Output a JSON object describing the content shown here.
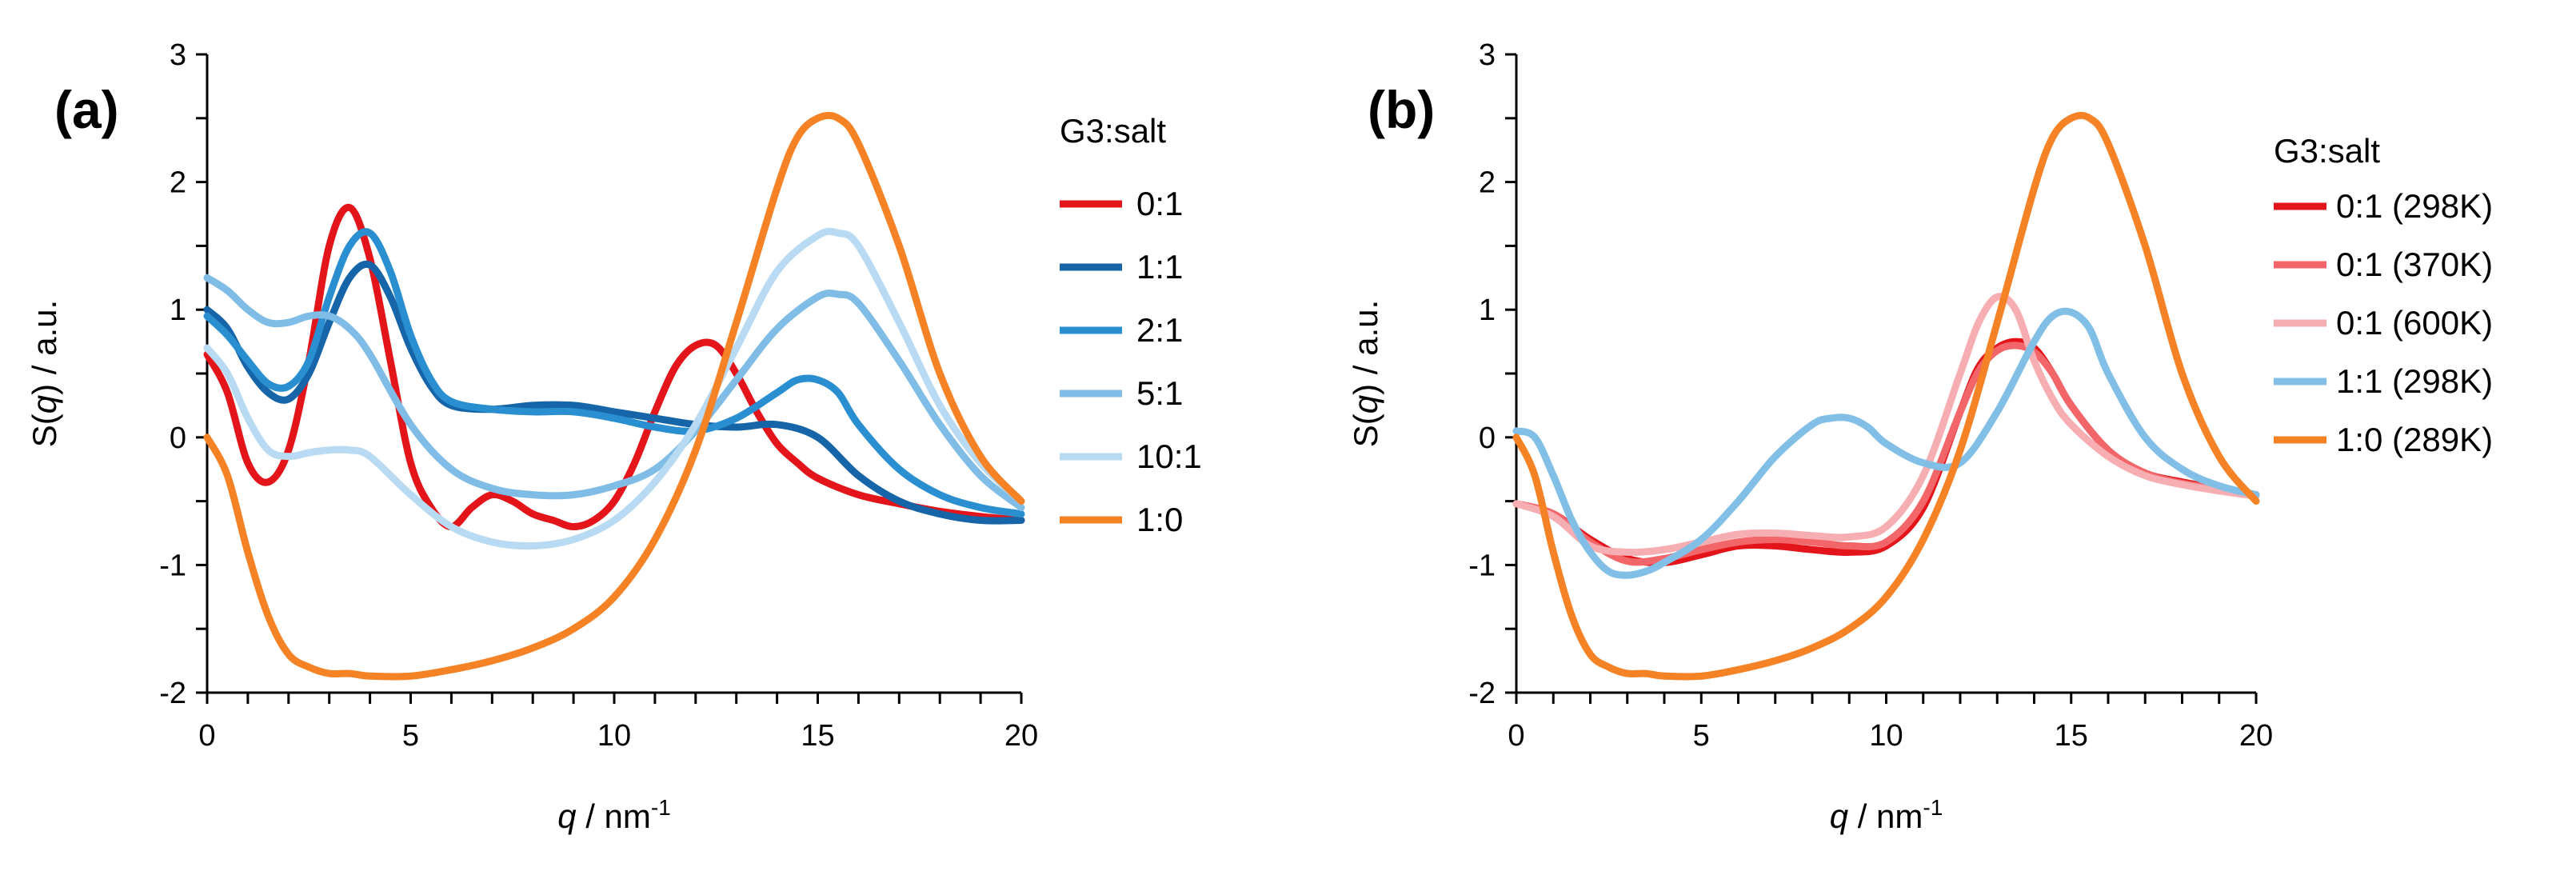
{
  "chart_data": [
    {
      "type": "line",
      "panel_label": "(a)",
      "xlabel_var": "q",
      "xlabel_rest": " / nm",
      "xlabel_sup": "-1",
      "ylabel_pre": "S(",
      "ylabel_var": "q",
      "ylabel_post": ") / a.u.",
      "xlim": [
        0,
        20
      ],
      "ylim": [
        -2,
        3
      ],
      "xticks": [
        0,
        5,
        10,
        15,
        20
      ],
      "yticks": [
        -2,
        -1,
        0,
        1,
        2,
        3
      ],
      "legend_title": "G3:salt",
      "series": [
        {
          "name": "0:1",
          "color": "#e3151a",
          "x": [
            0,
            0.5,
            1,
            1.5,
            2,
            2.5,
            3,
            3.5,
            4,
            4.5,
            5,
            5.5,
            6,
            6.5,
            7,
            7.5,
            8,
            8.5,
            9,
            9.5,
            10,
            10.5,
            11,
            11.5,
            12,
            12.5,
            13,
            13.5,
            14,
            14.5,
            15,
            16,
            17,
            18,
            19,
            20
          ],
          "y": [
            0.65,
            0.35,
            -0.2,
            -0.35,
            -0.1,
            0.6,
            1.5,
            1.8,
            1.4,
            0.6,
            -0.2,
            -0.55,
            -0.7,
            -0.55,
            -0.45,
            -0.5,
            -0.6,
            -0.65,
            -0.7,
            -0.65,
            -0.5,
            -0.2,
            0.2,
            0.55,
            0.72,
            0.72,
            0.5,
            0.2,
            -0.05,
            -0.2,
            -0.32,
            -0.45,
            -0.52,
            -0.58,
            -0.62,
            -0.65
          ]
        },
        {
          "name": "1:1",
          "color": "#1565a8",
          "x": [
            0,
            0.5,
            1,
            1.5,
            2,
            2.5,
            3,
            3.5,
            4,
            4.5,
            5,
            5.5,
            6,
            7,
            8,
            9,
            10,
            11,
            12,
            13,
            14,
            15,
            16,
            17,
            18,
            19,
            20
          ],
          "y": [
            1.0,
            0.85,
            0.55,
            0.35,
            0.3,
            0.5,
            0.9,
            1.25,
            1.35,
            1.1,
            0.7,
            0.4,
            0.25,
            0.22,
            0.25,
            0.25,
            0.2,
            0.15,
            0.1,
            0.08,
            0.1,
            0.0,
            -0.3,
            -0.5,
            -0.6,
            -0.65,
            -0.65
          ]
        },
        {
          "name": "2:1",
          "color": "#2a8fd0",
          "x": [
            0,
            0.5,
            1,
            1.5,
            2,
            2.5,
            3,
            3.5,
            4,
            4.5,
            5,
            5.5,
            6,
            7,
            8,
            9,
            10,
            11,
            12,
            13,
            14,
            14.5,
            15,
            15.5,
            16,
            17,
            18,
            19,
            20
          ],
          "y": [
            0.95,
            0.8,
            0.6,
            0.42,
            0.4,
            0.6,
            1.1,
            1.5,
            1.6,
            1.3,
            0.8,
            0.45,
            0.28,
            0.22,
            0.2,
            0.2,
            0.15,
            0.08,
            0.05,
            0.15,
            0.35,
            0.45,
            0.45,
            0.35,
            0.1,
            -0.25,
            -0.45,
            -0.55,
            -0.6
          ]
        },
        {
          "name": "5:1",
          "color": "#80bde6",
          "x": [
            0,
            0.5,
            1,
            1.5,
            2,
            2.5,
            3,
            3.5,
            4,
            5,
            6,
            7,
            8,
            9,
            10,
            11,
            12,
            13,
            14,
            15,
            15.5,
            16,
            17,
            18,
            19,
            20
          ],
          "y": [
            1.25,
            1.15,
            1.0,
            0.9,
            0.9,
            0.95,
            0.95,
            0.85,
            0.65,
            0.1,
            -0.25,
            -0.4,
            -0.45,
            -0.45,
            -0.38,
            -0.25,
            0.05,
            0.45,
            0.85,
            1.1,
            1.12,
            1.05,
            0.6,
            0.1,
            -0.3,
            -0.55
          ]
        },
        {
          "name": "10:1",
          "color": "#b8daf2",
          "x": [
            0,
            0.5,
            1,
            1.5,
            2,
            2.5,
            3,
            3.5,
            4,
            5,
            6,
            7,
            8,
            9,
            10,
            11,
            12,
            13,
            14,
            15,
            15.5,
            16,
            17,
            18,
            19,
            20
          ],
          "y": [
            0.7,
            0.5,
            0.15,
            -0.1,
            -0.15,
            -0.12,
            -0.1,
            -0.1,
            -0.15,
            -0.45,
            -0.7,
            -0.82,
            -0.85,
            -0.8,
            -0.65,
            -0.35,
            0.1,
            0.7,
            1.3,
            1.58,
            1.6,
            1.5,
            0.9,
            0.25,
            -0.2,
            -0.5
          ]
        },
        {
          "name": "1:0",
          "color": "#f58225",
          "x": [
            0,
            0.5,
            1,
            1.5,
            2,
            2.5,
            3,
            3.5,
            4,
            5,
            6,
            7,
            8,
            9,
            10,
            11,
            12,
            13,
            14,
            14.5,
            15,
            15.5,
            16,
            17,
            18,
            19,
            20
          ],
          "y": [
            0.0,
            -0.3,
            -0.9,
            -1.4,
            -1.7,
            -1.8,
            -1.85,
            -1.85,
            -1.87,
            -1.87,
            -1.82,
            -1.75,
            -1.65,
            -1.5,
            -1.25,
            -0.8,
            -0.1,
            0.9,
            1.95,
            2.35,
            2.5,
            2.5,
            2.3,
            1.5,
            0.5,
            -0.15,
            -0.5
          ]
        }
      ]
    },
    {
      "type": "line",
      "panel_label": "(b)",
      "xlabel_var": "q",
      "xlabel_rest": " / nm",
      "xlabel_sup": "-1",
      "ylabel_pre": "S(",
      "ylabel_var": "q",
      "ylabel_post": ") / a.u.",
      "xlim": [
        0,
        20
      ],
      "ylim": [
        -2,
        3
      ],
      "xticks": [
        0,
        5,
        10,
        15,
        20
      ],
      "yticks": [
        -2,
        -1,
        0,
        1,
        2,
        3
      ],
      "legend_title": "G3:salt",
      "series": [
        {
          "name": "0:1 (298K)",
          "color": "#e3151a",
          "x": [
            0,
            1,
            2,
            3,
            4,
            5,
            6,
            7,
            8,
            9,
            10,
            11,
            12,
            12.5,
            13,
            13.5,
            14,
            14.5,
            15,
            16,
            17,
            18,
            19,
            20
          ],
          "y": [
            -0.52,
            -0.6,
            -0.8,
            -0.95,
            -0.98,
            -0.92,
            -0.85,
            -0.85,
            -0.88,
            -0.9,
            -0.85,
            -0.55,
            0.2,
            0.55,
            0.7,
            0.75,
            0.7,
            0.5,
            0.25,
            -0.1,
            -0.28,
            -0.35,
            -0.4,
            -0.45
          ]
        },
        {
          "name": "0:1 (370K)",
          "color": "#f2666a",
          "x": [
            0,
            1,
            2,
            3,
            4,
            5,
            6,
            7,
            8,
            9,
            10,
            11,
            12,
            12.5,
            13,
            13.5,
            14,
            14.5,
            15,
            16,
            17,
            18,
            19,
            20
          ],
          "y": [
            -0.52,
            -0.6,
            -0.82,
            -0.97,
            -0.95,
            -0.88,
            -0.82,
            -0.8,
            -0.82,
            -0.85,
            -0.82,
            -0.5,
            0.2,
            0.52,
            0.68,
            0.72,
            0.67,
            0.5,
            0.25,
            -0.1,
            -0.28,
            -0.36,
            -0.4,
            -0.45
          ]
        },
        {
          "name": "0:1 (600K)",
          "color": "#f7aeb2",
          "x": [
            0,
            1,
            2,
            3,
            4,
            5,
            6,
            7,
            8,
            9,
            10,
            11,
            12,
            12.5,
            13,
            13.5,
            14,
            14.5,
            15,
            16,
            17,
            18,
            19,
            20
          ],
          "y": [
            -0.52,
            -0.62,
            -0.85,
            -0.9,
            -0.88,
            -0.82,
            -0.76,
            -0.75,
            -0.77,
            -0.78,
            -0.7,
            -0.3,
            0.5,
            0.9,
            1.1,
            1.0,
            0.6,
            0.3,
            0.1,
            -0.15,
            -0.3,
            -0.37,
            -0.42,
            -0.46
          ]
        },
        {
          "name": "1:1 (298K)",
          "color": "#82bfe6",
          "x": [
            0,
            0.5,
            1,
            1.5,
            2,
            2.5,
            3,
            3.5,
            4,
            5,
            6,
            7,
            8,
            8.5,
            9,
            9.5,
            10,
            11,
            12,
            13,
            14,
            14.5,
            15,
            15.5,
            16,
            17,
            18,
            19,
            20
          ],
          "y": [
            0.05,
            0.0,
            -0.3,
            -0.65,
            -0.9,
            -1.05,
            -1.08,
            -1.05,
            -0.98,
            -0.8,
            -0.5,
            -0.15,
            0.1,
            0.15,
            0.15,
            0.08,
            -0.05,
            -0.2,
            -0.2,
            0.2,
            0.75,
            0.95,
            0.98,
            0.85,
            0.5,
            0.0,
            -0.25,
            -0.38,
            -0.45
          ]
        },
        {
          "name": "1:0 (289K)",
          "color": "#f58225",
          "x": [
            0,
            0.5,
            1,
            1.5,
            2,
            2.5,
            3,
            3.5,
            4,
            5,
            6,
            7,
            8,
            9,
            10,
            11,
            12,
            13,
            14,
            14.5,
            15,
            15.5,
            16,
            17,
            18,
            19,
            20
          ],
          "y": [
            0.0,
            -0.3,
            -0.9,
            -1.4,
            -1.7,
            -1.8,
            -1.85,
            -1.85,
            -1.87,
            -1.87,
            -1.82,
            -1.75,
            -1.65,
            -1.5,
            -1.25,
            -0.8,
            -0.1,
            0.9,
            1.95,
            2.35,
            2.5,
            2.5,
            2.3,
            1.5,
            0.5,
            -0.15,
            -0.5
          ]
        }
      ]
    }
  ]
}
